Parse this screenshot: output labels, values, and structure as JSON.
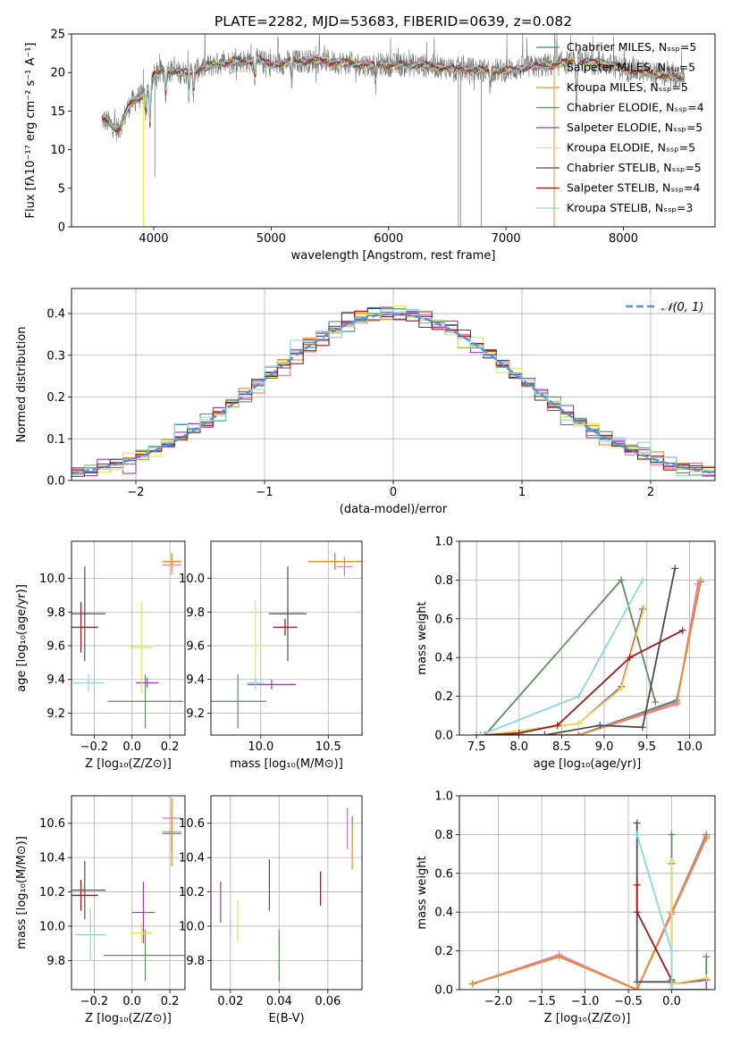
{
  "colors": {
    "Chabrier MILES": "#3f7fae",
    "Salpeter MILES": "#e377c2",
    "Kroupa MILES": "#f08a24",
    "Chabrier ELODIE": "#5c8f5e",
    "Salpeter ELODIE": "#9b3fb0",
    "Kroupa ELODIE": "#e2e84e",
    "Chabrier STELIB": "#4d4d4d",
    "Salpeter STELIB": "#a31515",
    "Kroupa STELIB": "#86d9de",
    "grid": "#b0b0b0",
    "normal_curve": "#5b8fd6"
  },
  "chart_data": [
    {
      "id": "spectrum",
      "type": "line",
      "title": "PLATE=2282, MJD=53683, FIBERID=0639, z=0.082",
      "xlabel": "wavelength [Angstrom, rest frame]",
      "ylabel": "Flux [fλ10⁻¹⁷ erg cm⁻² s⁻¹ A⁻¹]",
      "xlim": [
        3300,
        8780
      ],
      "ylim": [
        0,
        25
      ],
      "xticks": [
        4000,
        5000,
        6000,
        7000,
        8000
      ],
      "yticks": [
        0,
        5,
        10,
        15,
        20,
        25
      ],
      "grid": false,
      "legend_position": "top-right",
      "legend": [
        "Chabrier MILES, Nₛₛₚ=5",
        "Salpeter MILES, Nₛₛₚ=5",
        "Kroupa MILES, Nₛₛₚ=5",
        "Chabrier ELODIE, Nₛₛₚ=4",
        "Salpeter ELODIE, Nₛₛₚ=5",
        "Kroupa ELODIE, Nₛₛₚ=5",
        "Chabrier STELIB, Nₛₛₚ=5",
        "Salpeter STELIB, Nₛₛₚ=4",
        "Kroupa STELIB, Nₛₛₚ=3"
      ],
      "continuum": [
        [
          3560,
          14
        ],
        [
          3620,
          13.5
        ],
        [
          3700,
          12.5
        ],
        [
          3800,
          16
        ],
        [
          3900,
          17
        ],
        [
          3950,
          18
        ],
        [
          4000,
          19.5
        ],
        [
          4100,
          20.5
        ],
        [
          4200,
          20
        ],
        [
          4300,
          20
        ],
        [
          4500,
          21
        ],
        [
          4700,
          21.5
        ],
        [
          4900,
          21.5
        ],
        [
          5000,
          21
        ],
        [
          5200,
          21.5
        ],
        [
          5400,
          21.5
        ],
        [
          5600,
          21.3
        ],
        [
          5800,
          21
        ],
        [
          6000,
          21
        ],
        [
          6200,
          21
        ],
        [
          6400,
          20.8
        ],
        [
          6600,
          20.5
        ],
        [
          6800,
          20.3
        ],
        [
          7000,
          20.3
        ],
        [
          7200,
          20.7
        ],
        [
          7400,
          21
        ],
        [
          7600,
          21.5
        ],
        [
          7800,
          21.2
        ],
        [
          8000,
          20.5
        ],
        [
          8200,
          20
        ],
        [
          8400,
          19.5
        ],
        [
          8500,
          19.2
        ]
      ],
      "absorption_features": [
        [
          3933,
          14
        ],
        [
          3968,
          13
        ],
        [
          4102,
          17
        ],
        [
          4300,
          17
        ],
        [
          4340,
          17
        ],
        [
          4861,
          19
        ],
        [
          5175,
          18
        ],
        [
          5890,
          18.5
        ],
        [
          6563,
          19.5
        ],
        [
          6867,
          17.5
        ],
        [
          7600,
          16
        ]
      ],
      "spikes": [
        [
          3912,
          0
        ],
        [
          4010,
          6.5
        ],
        [
          6595,
          0
        ],
        [
          6615,
          0
        ],
        [
          6790,
          0
        ],
        [
          7410,
          0
        ]
      ]
    },
    {
      "id": "residuals",
      "type": "histogram",
      "xlabel": "(data-model)/error",
      "ylabel": "Normed distribution",
      "xlim": [
        -2.5,
        2.5
      ],
      "ylim": [
        0,
        0.46
      ],
      "xticks": [
        -2,
        -1,
        0,
        1,
        2
      ],
      "yticks": [
        0.0,
        0.1,
        0.2,
        0.3,
        0.4
      ],
      "grid": true,
      "bin_width": 0.1,
      "legend": [
        "𝒩(0, 1)"
      ],
      "legend_position": "top-right",
      "offsets": [
        [
          0.01,
          -0.008,
          0.015,
          -0.02,
          0.005,
          0.02,
          -0.012,
          0.008,
          0.0
        ],
        [
          -0.015,
          0.012,
          -0.005,
          0.018,
          -0.01,
          0.004,
          0.02,
          -0.018,
          0.01
        ],
        [
          0.02,
          -0.01,
          0.006,
          -0.004,
          0.015,
          -0.02,
          0.0,
          0.012,
          -0.008
        ],
        [
          -0.005,
          0.02,
          -0.018,
          0.01,
          -0.012,
          0.015,
          -0.004,
          0.006,
          0.02
        ],
        [
          0.012,
          -0.015,
          0.02,
          0.004,
          -0.02,
          0.0,
          0.01,
          -0.006,
          0.015
        ],
        [
          0.0,
          0.01,
          -0.012,
          -0.015,
          0.02,
          0.006,
          -0.02,
          0.016,
          -0.004
        ],
        [
          -0.02,
          0.004,
          0.012,
          0.02,
          0.0,
          -0.01,
          0.015,
          -0.012,
          0.006
        ],
        [
          0.015,
          -0.02,
          0.0,
          0.006,
          0.012,
          0.018,
          -0.006,
          0.0,
          -0.015
        ],
        [
          0.006,
          0.016,
          -0.02,
          -0.008,
          0.004,
          -0.012,
          0.02,
          0.01,
          0.035
        ]
      ]
    },
    {
      "id": "age_vs_Z",
      "type": "errorbar",
      "xlabel": "Z [log₁₀(Z/Z⊙)]",
      "ylabel": "age  [log₁₀(age/yr)]",
      "xlim": [
        -0.32,
        0.28
      ],
      "ylim": [
        9.07,
        10.22
      ],
      "xticks": [
        -0.2,
        0.0,
        0.2
      ],
      "yticks": [
        9.2,
        9.4,
        9.6,
        9.8,
        10.0
      ],
      "grid": true,
      "points": [
        {
          "model": "Chabrier MILES",
          "x": 0.21,
          "xerr": 0.05,
          "y": 10.1,
          "yerr": 0.05
        },
        {
          "model": "Salpeter MILES",
          "x": 0.21,
          "xerr": 0.05,
          "y": 10.08,
          "yerr": 0.06
        },
        {
          "model": "Kroupa MILES",
          "x": 0.21,
          "xerr": 0.05,
          "y": 10.1,
          "yerr": 0.05
        },
        {
          "model": "Chabrier ELODIE",
          "x": 0.07,
          "xerr": 0.2,
          "y": 9.27,
          "yerr": 0.16
        },
        {
          "model": "Salpeter ELODIE",
          "x": 0.08,
          "xerr": 0.06,
          "y": 9.38,
          "yerr": 0.03
        },
        {
          "model": "Kroupa ELODIE",
          "x": 0.05,
          "xerr": 0.06,
          "y": 9.59,
          "yerr": 0.27
        },
        {
          "model": "Chabrier STELIB",
          "x": -0.25,
          "xerr": 0.11,
          "y": 9.79,
          "yerr": 0.28
        },
        {
          "model": "Salpeter STELIB",
          "x": -0.27,
          "xerr": 0.09,
          "y": 9.71,
          "yerr": 0.15
        },
        {
          "model": "Kroupa STELIB",
          "x": -0.23,
          "xerr": 0.08,
          "y": 9.38,
          "yerr": 0.05
        }
      ]
    },
    {
      "id": "age_vs_mass",
      "type": "errorbar",
      "xlabel": "mass [log₁₀(M/M⊙)]",
      "ylabel": "",
      "xlim": [
        9.63,
        10.75
      ],
      "ylim": [
        9.07,
        10.22
      ],
      "xticks": [
        10.0,
        10.5
      ],
      "yticks": [
        9.2,
        9.4,
        9.6,
        9.8,
        10.0
      ],
      "grid": true,
      "points": [
        {
          "model": "Chabrier MILES",
          "x": 10.55,
          "xerr": 0.12,
          "y": 10.1,
          "yerr": 0.05
        },
        {
          "model": "Salpeter MILES",
          "x": 10.62,
          "xerr": 0.06,
          "y": 10.07,
          "yerr": 0.06
        },
        {
          "model": "Kroupa MILES",
          "x": 10.55,
          "xerr": 0.2,
          "y": 10.1,
          "yerr": 0.05
        },
        {
          "model": "Chabrier ELODIE",
          "x": 9.83,
          "xerr": 0.21,
          "y": 9.27,
          "yerr": 0.16
        },
        {
          "model": "Salpeter ELODIE",
          "x": 10.08,
          "xerr": 0.18,
          "y": 9.37,
          "yerr": 0.03
        },
        {
          "model": "Kroupa ELODIE",
          "x": 9.96,
          "xerr": 0.05,
          "y": 9.6,
          "yerr": 0.27
        },
        {
          "model": "Chabrier STELIB",
          "x": 10.2,
          "xerr": 0.14,
          "y": 9.79,
          "yerr": 0.28
        },
        {
          "model": "Salpeter STELIB",
          "x": 10.18,
          "xerr": 0.09,
          "y": 9.71,
          "yerr": 0.05
        },
        {
          "model": "Kroupa STELIB",
          "x": 9.96,
          "xerr": 0.06,
          "y": 9.38,
          "yerr": 0.03
        }
      ]
    },
    {
      "id": "weight_vs_age",
      "type": "line",
      "xlabel": "age  [log₁₀(age/yr)]",
      "ylabel": "mass weight",
      "xlim": [
        7.3,
        10.3
      ],
      "ylim": [
        0,
        1.0
      ],
      "xticks": [
        7.5,
        8.0,
        8.5,
        9.0,
        9.5,
        10.0
      ],
      "yticks": [
        0.0,
        0.2,
        0.4,
        0.6,
        0.8,
        1.0
      ],
      "grid": true,
      "series": [
        {
          "model": "Chabrier MILES",
          "x": [
            7.5,
            8.7,
            9.85,
            10.13
          ],
          "y": [
            0.0,
            0.0,
            0.18,
            0.79
          ]
        },
        {
          "model": "Salpeter MILES",
          "x": [
            7.5,
            8.7,
            9.85,
            10.1
          ],
          "y": [
            0.0,
            0.0,
            0.16,
            0.78
          ]
        },
        {
          "model": "Kroupa MILES",
          "x": [
            7.5,
            8.7,
            9.85,
            10.13
          ],
          "y": [
            0.0,
            0.0,
            0.17,
            0.8
          ]
        },
        {
          "model": "Chabrier ELODIE",
          "x": [
            7.6,
            9.2,
            9.6
          ],
          "y": [
            0.0,
            0.8,
            0.17
          ]
        },
        {
          "model": "Salpeter ELODIE",
          "x": [
            7.6,
            8.7,
            9.2,
            9.45
          ],
          "y": [
            0.0,
            0.06,
            0.25,
            0.65
          ]
        },
        {
          "model": "Kroupa ELODIE",
          "x": [
            7.6,
            8.7,
            9.2,
            9.47
          ],
          "y": [
            0.0,
            0.06,
            0.24,
            0.66
          ]
        },
        {
          "model": "Chabrier STELIB",
          "x": [
            7.55,
            8.3,
            8.95,
            9.45,
            9.83
          ],
          "y": [
            0.0,
            0.0,
            0.05,
            0.04,
            0.86
          ]
        },
        {
          "model": "Salpeter STELIB",
          "x": [
            7.6,
            8.0,
            8.45,
            9.3,
            9.92
          ],
          "y": [
            0.0,
            0.01,
            0.05,
            0.4,
            0.54
          ]
        },
        {
          "model": "Kroupa STELIB",
          "x": [
            7.55,
            8.7,
            9.45
          ],
          "y": [
            0.0,
            0.2,
            0.8
          ]
        }
      ]
    },
    {
      "id": "mass_vs_Z",
      "type": "errorbar",
      "xlabel": "Z [log₁₀(Z/Z⊙)]",
      "ylabel": "mass [log₁₀(M/M⊙)]",
      "xlim": [
        -0.32,
        0.28
      ],
      "ylim": [
        9.63,
        10.76
      ],
      "xticks": [
        -0.2,
        0.0,
        0.2
      ],
      "yticks": [
        9.8,
        10.0,
        10.2,
        10.4,
        10.6
      ],
      "grid": true,
      "points": [
        {
          "model": "Chabrier MILES",
          "x": 0.21,
          "xerr": 0.05,
          "y": 10.54,
          "yerr": 0.1
        },
        {
          "model": "Salpeter MILES",
          "x": 0.21,
          "xerr": 0.05,
          "y": 10.63,
          "yerr": 0.1
        },
        {
          "model": "Kroupa MILES",
          "x": 0.21,
          "xerr": 0.05,
          "y": 10.55,
          "yerr": 0.2
        },
        {
          "model": "Chabrier ELODIE",
          "x": 0.07,
          "xerr": 0.22,
          "y": 9.83,
          "yerr": 0.15
        },
        {
          "model": "Salpeter ELODIE",
          "x": 0.06,
          "xerr": 0.06,
          "y": 10.08,
          "yerr": 0.18
        },
        {
          "model": "Kroupa ELODIE",
          "x": 0.05,
          "xerr": 0.06,
          "y": 9.96,
          "yerr": 0.06
        },
        {
          "model": "Chabrier STELIB",
          "x": -0.25,
          "xerr": 0.11,
          "y": 10.21,
          "yerr": 0.17
        },
        {
          "model": "Salpeter STELIB",
          "x": -0.27,
          "xerr": 0.09,
          "y": 10.18,
          "yerr": 0.09
        },
        {
          "model": "Kroupa STELIB",
          "x": -0.22,
          "xerr": 0.08,
          "y": 9.95,
          "yerr": 0.15
        }
      ]
    },
    {
      "id": "mass_vs_ebv",
      "type": "errorbar",
      "xlabel": "E(B-V)",
      "ylabel": "",
      "xlim": [
        0.012,
        0.074
      ],
      "ylim": [
        9.63,
        10.76
      ],
      "xticks": [
        0.02,
        0.04,
        0.06
      ],
      "yticks": [
        9.8,
        10.0,
        10.2,
        10.4,
        10.6
      ],
      "grid": true,
      "points": [
        {
          "model": "Chabrier MILES",
          "x": 0.07,
          "y": 10.54,
          "yerr": 0.1
        },
        {
          "model": "Salpeter MILES",
          "x": 0.068,
          "y": 10.57,
          "yerr": 0.12
        },
        {
          "model": "Kroupa MILES",
          "x": 0.07,
          "y": 10.47,
          "yerr": 0.14
        },
        {
          "model": "Chabrier ELODIE",
          "x": 0.04,
          "y": 9.83,
          "yerr": 0.15
        },
        {
          "model": "Salpeter ELODIE",
          "x": 0.016,
          "y": 10.14,
          "yerr": 0.12
        },
        {
          "model": "Kroupa ELODIE",
          "x": 0.023,
          "y": 10.03,
          "yerr": 0.12
        },
        {
          "model": "Chabrier STELIB",
          "x": 0.036,
          "y": 10.24,
          "yerr": 0.15
        },
        {
          "model": "Salpeter STELIB",
          "x": 0.057,
          "y": 10.22,
          "yerr": 0.1
        },
        {
          "model": "Kroupa STELIB",
          "x": 0.02,
          "y": 10.0,
          "yerr": 0.05
        }
      ]
    },
    {
      "id": "weight_vs_Z",
      "type": "line",
      "xlabel": "Z [log₁₀(Z/Z⊙)]",
      "ylabel": "mass weight",
      "xlim": [
        -2.45,
        0.5
      ],
      "ylim": [
        0,
        1.0
      ],
      "xticks": [
        -2.0,
        -1.5,
        -1.0,
        -0.5,
        0.0
      ],
      "yticks": [
        0.0,
        0.2,
        0.4,
        0.6,
        0.8,
        1.0
      ],
      "grid": true,
      "series": [
        {
          "model": "Chabrier MILES",
          "x": [
            -2.3,
            -1.3,
            -0.4,
            0.0,
            0.4
          ],
          "y": [
            0.03,
            0.17,
            0.0,
            0.4,
            0.8
          ]
        },
        {
          "model": "Salpeter MILES",
          "x": [
            -2.3,
            -1.3,
            -0.4,
            0.0,
            0.4
          ],
          "y": [
            0.03,
            0.18,
            0.0,
            0.39,
            0.78
          ]
        },
        {
          "model": "Kroupa MILES",
          "x": [
            -2.3,
            -1.3,
            -0.4,
            0.0,
            0.4
          ],
          "y": [
            0.03,
            0.17,
            0.0,
            0.4,
            0.79
          ]
        },
        {
          "model": "Chabrier ELODIE",
          "x": [
            0.0,
            0.0,
            0.4,
            0.4
          ],
          "y": [
            0.8,
            0.0,
            0.0,
            0.17
          ]
        },
        {
          "model": "Salpeter ELODIE",
          "x": [
            0.0,
            0.0,
            0.4
          ],
          "y": [
            0.65,
            0.03,
            0.05
          ]
        },
        {
          "model": "Kroupa ELODIE",
          "x": [
            0.0,
            0.0,
            0.4
          ],
          "y": [
            0.66,
            0.03,
            0.06
          ]
        },
        {
          "model": "Chabrier STELIB",
          "x": [
            -0.4,
            -0.4,
            0.0,
            0.0
          ],
          "y": [
            0.86,
            0.04,
            0.04,
            0.0
          ]
        },
        {
          "model": "Salpeter STELIB",
          "x": [
            -0.4,
            -0.4,
            0.0,
            0.0
          ],
          "y": [
            0.54,
            0.4,
            0.05,
            0.0
          ]
        },
        {
          "model": "Kroupa STELIB",
          "x": [
            -0.4,
            0.0,
            0.0
          ],
          "y": [
            0.8,
            0.2,
            0.0
          ]
        }
      ]
    }
  ]
}
